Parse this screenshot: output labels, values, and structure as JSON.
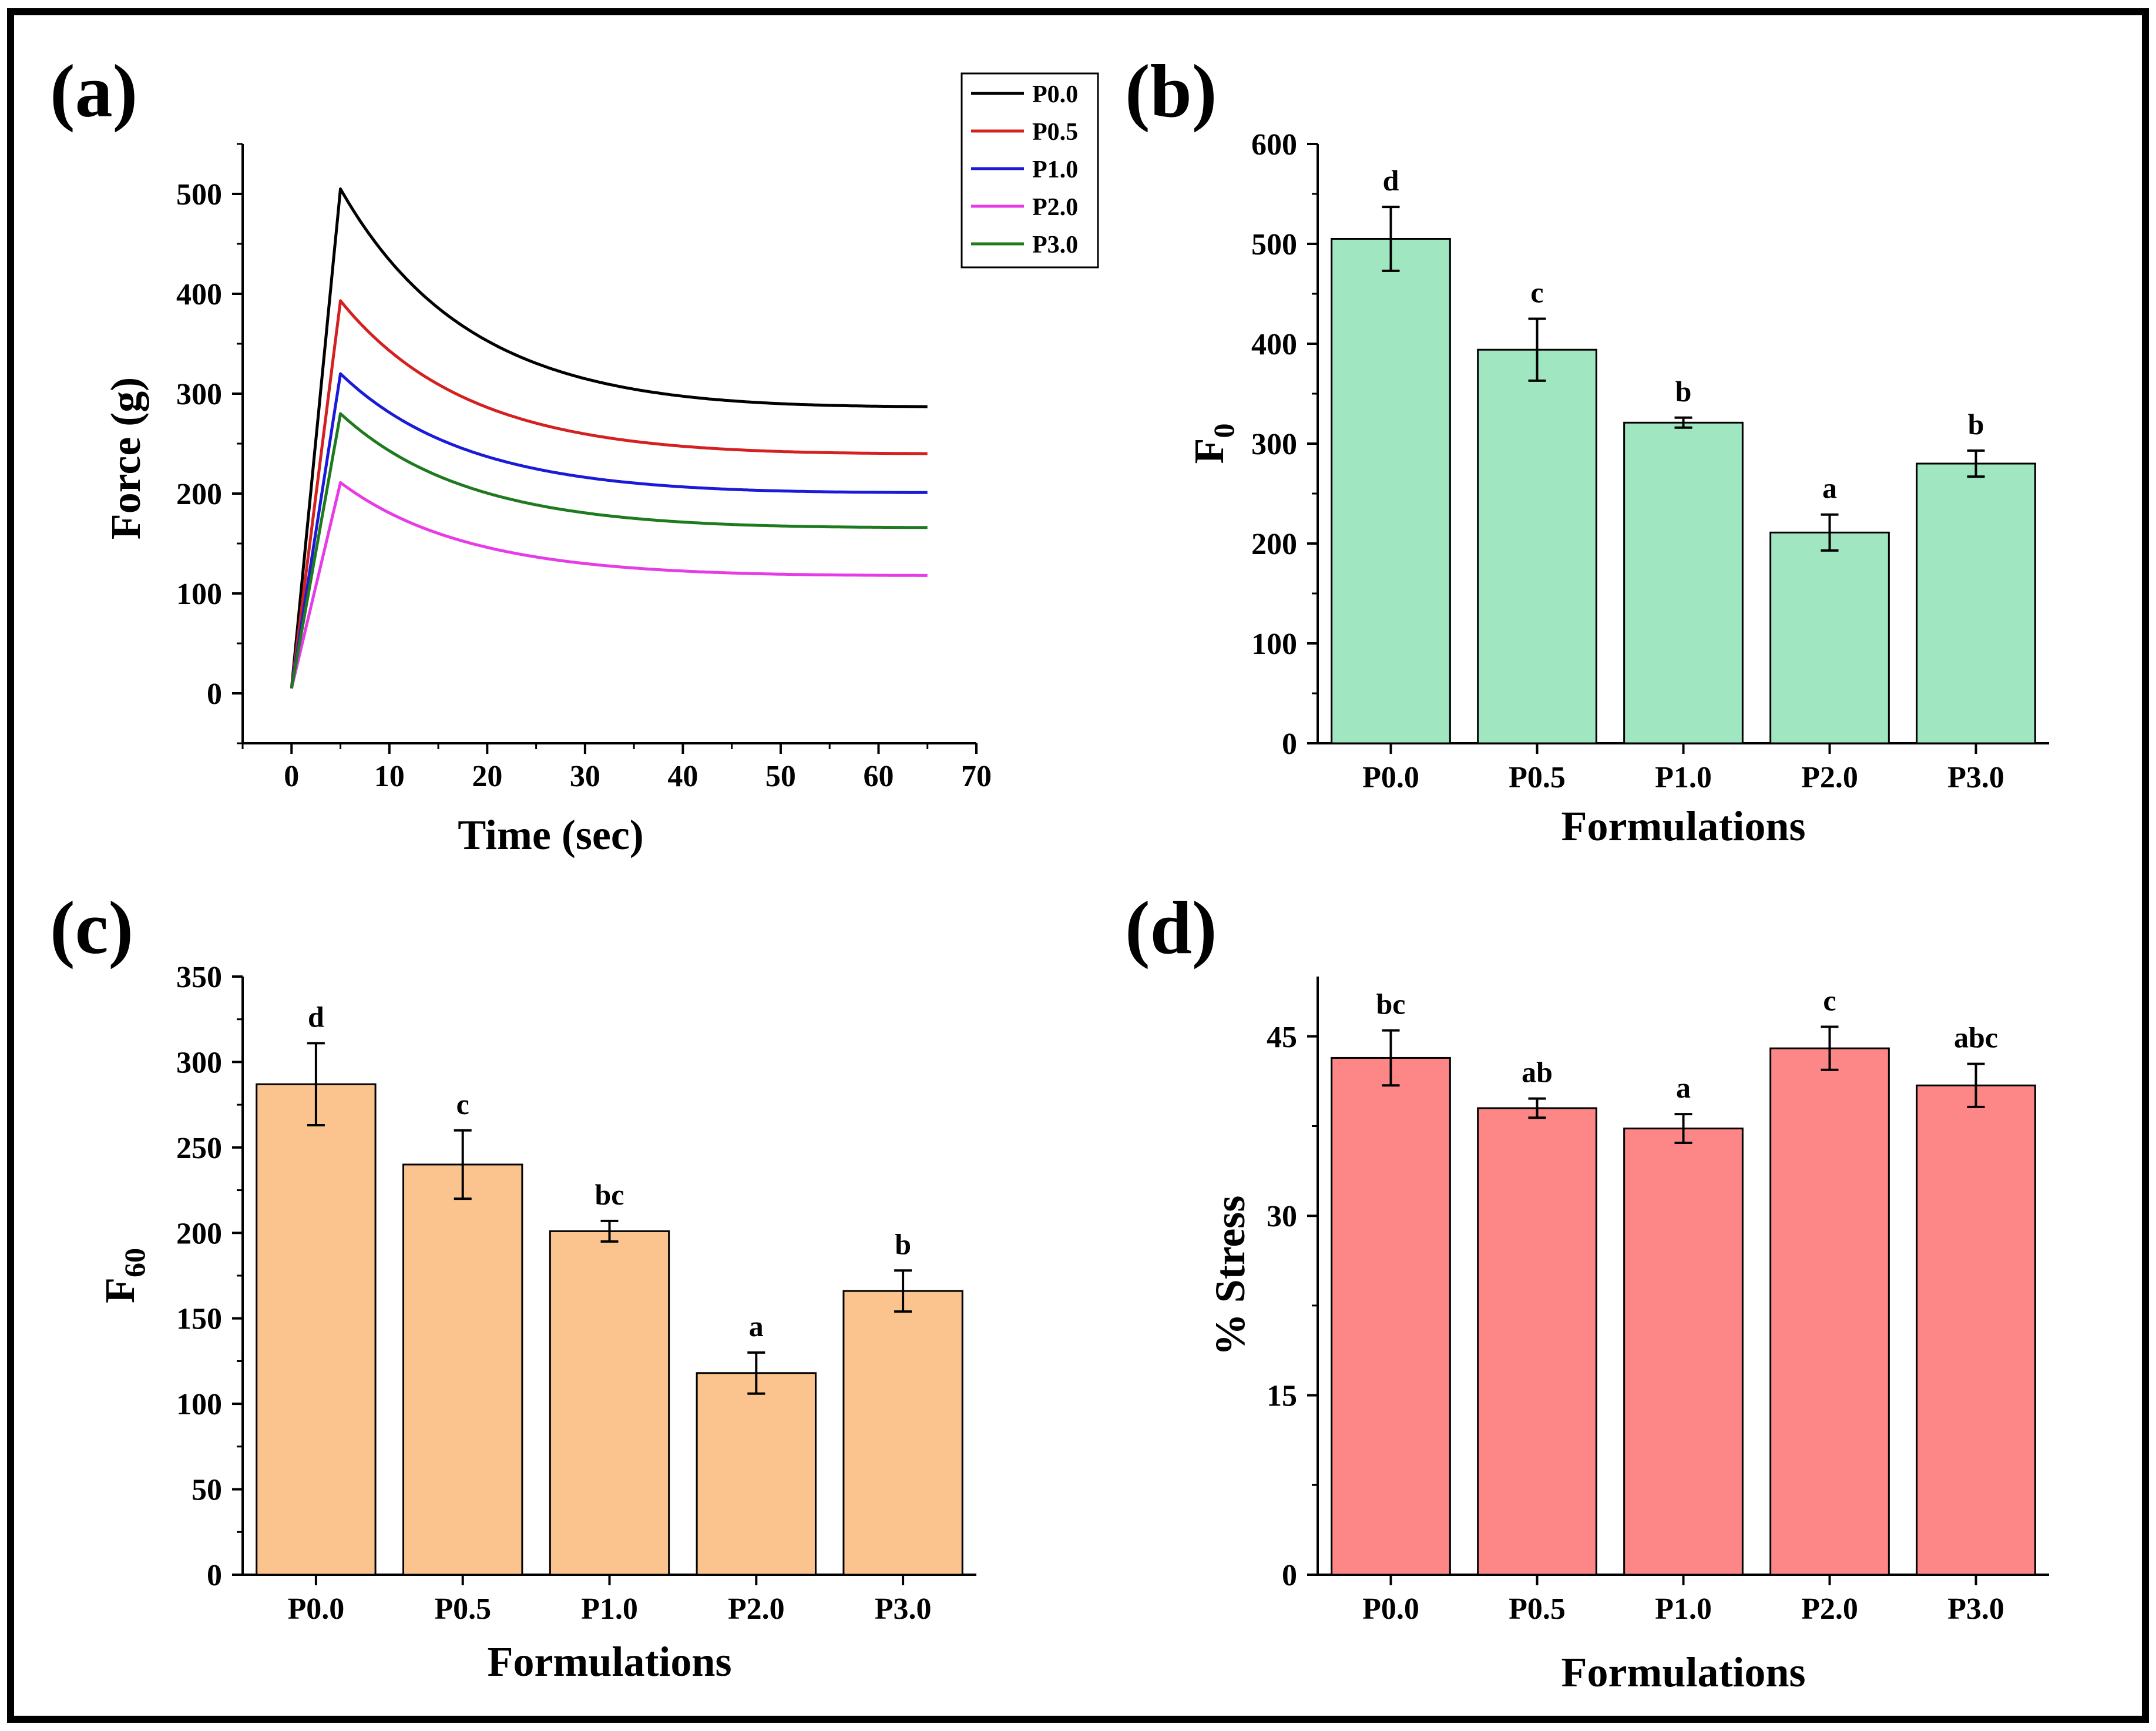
{
  "colors": {
    "P0.0": "#000000",
    "P0.5": "#d42020",
    "P1.0": "#1a1ad8",
    "P2.0": "#e63be6",
    "P3.0": "#1e7a1e",
    "bar_b": "#9fe6c1",
    "bar_c": "#fbc48e",
    "bar_d": "#fd8787"
  },
  "chart_data": [
    {
      "panel": "(a)",
      "type": "line",
      "xlabel": "Time (sec)",
      "ylabel": "Force (g)",
      "xlim": [
        -5,
        70
      ],
      "ylim": [
        -50,
        550
      ],
      "xticks": [
        0,
        10,
        20,
        30,
        40,
        50,
        60,
        70
      ],
      "yticks": [
        0,
        100,
        200,
        300,
        400,
        500
      ],
      "legend": "top-right",
      "series": [
        {
          "name": "P0.0",
          "start": 5,
          "peak_t": 5,
          "peak": 505,
          "end": 287,
          "end_t": 65
        },
        {
          "name": "P0.5",
          "start": 5,
          "peak_t": 5,
          "peak": 393,
          "end": 240,
          "end_t": 65
        },
        {
          "name": "P1.0",
          "start": 5,
          "peak_t": 5,
          "peak": 320,
          "end": 201,
          "end_t": 65
        },
        {
          "name": "P2.0",
          "start": 5,
          "peak_t": 5,
          "peak": 211,
          "end": 118,
          "end_t": 65
        },
        {
          "name": "P3.0",
          "start": 5,
          "peak_t": 5,
          "peak": 280,
          "end": 166,
          "end_t": 65
        }
      ]
    },
    {
      "panel": "(b)",
      "type": "bar",
      "xlabel": "Formulations",
      "ylabel": "F",
      "ylabel_sub": "0",
      "categories": [
        "P0.0",
        "P0.5",
        "P1.0",
        "P2.0",
        "P3.0"
      ],
      "values": [
        505,
        394,
        321,
        211,
        280
      ],
      "errors": [
        32,
        31,
        5,
        18,
        13
      ],
      "letters": [
        "d",
        "c",
        "b",
        "a",
        "b"
      ],
      "ylim": [
        0,
        600
      ],
      "yticks": [
        0,
        100,
        200,
        300,
        400,
        500,
        600
      ]
    },
    {
      "panel": "(c)",
      "type": "bar",
      "xlabel": "Formulations",
      "ylabel": "F",
      "ylabel_sub": "60",
      "categories": [
        "P0.0",
        "P0.5",
        "P1.0",
        "P2.0",
        "P3.0"
      ],
      "values": [
        287,
        240,
        201,
        118,
        166
      ],
      "errors": [
        24,
        20,
        6,
        12,
        12
      ],
      "letters": [
        "d",
        "c",
        "bc",
        "a",
        "b"
      ],
      "ylim": [
        0,
        350
      ],
      "yticks": [
        0,
        50,
        100,
        150,
        200,
        250,
        300,
        350
      ]
    },
    {
      "panel": "(d)",
      "type": "bar",
      "xlabel": "Formulations",
      "ylabel": "% Stress",
      "ylabel_sub": "",
      "categories": [
        "P0.0",
        "P0.5",
        "P1.0",
        "P2.0",
        "P3.0"
      ],
      "values": [
        43.2,
        39.0,
        37.3,
        44.0,
        40.9
      ],
      "errors": [
        2.3,
        0.8,
        1.2,
        1.8,
        1.8
      ],
      "letters": [
        "bc",
        "ab",
        "a",
        "c",
        "abc"
      ],
      "ylim": [
        0,
        50
      ],
      "yticks": [
        0,
        15,
        30,
        45
      ]
    }
  ]
}
